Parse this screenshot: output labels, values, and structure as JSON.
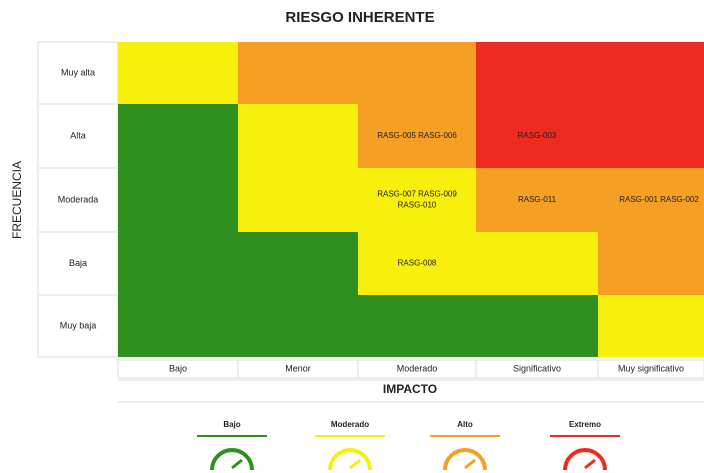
{
  "title": "RIESGO INHERENTE",
  "y_axis_label": "FRECUENCIA",
  "x_axis_label": "IMPACTO",
  "columns": [
    "Bajo",
    "Menor",
    "Moderado",
    "Significativo",
    "Muy significativo"
  ],
  "legend": [
    {
      "label": "Bajo",
      "color": "#2f8f1f"
    },
    {
      "label": "Moderado",
      "color": "#f6f00c"
    },
    {
      "label": "Alto",
      "color": "#f5a024"
    },
    {
      "label": "Extremo",
      "color": "#ee2b20"
    }
  ],
  "rows": [
    {
      "label": "Muy alta",
      "cells": [
        {
          "level": 1
        },
        {
          "level": 2
        },
        {
          "level": 2
        },
        {
          "level": 3
        },
        {
          "level": 3
        }
      ]
    },
    {
      "label": "Alta",
      "cells": [
        {
          "level": 0
        },
        {
          "level": 1
        },
        {
          "level": 2,
          "labels": [
            "RASG-005 RASG-006"
          ]
        },
        {
          "level": 3,
          "labels": [
            "RASG-003"
          ]
        },
        {
          "level": 3
        }
      ]
    },
    {
      "label": "Moderada",
      "cells": [
        {
          "level": 0
        },
        {
          "level": 1
        },
        {
          "level": 1,
          "labels": [
            "RASG-007 RASG-009",
            "RASG-010"
          ]
        },
        {
          "level": 2,
          "labels": [
            "RASG-011"
          ]
        },
        {
          "level": 2,
          "labels": [
            "RASG-001 RASG-002"
          ]
        }
      ]
    },
    {
      "label": "Baja",
      "cells": [
        {
          "level": 0
        },
        {
          "level": 0
        },
        {
          "level": 1,
          "labels": [
            "RASG-008"
          ]
        },
        {
          "level": 1
        },
        {
          "level": 2
        }
      ]
    },
    {
      "label": "Muy baja",
      "cells": [
        {
          "level": 0
        },
        {
          "level": 0
        },
        {
          "level": 0
        },
        {
          "level": 0
        },
        {
          "level": 1
        }
      ]
    }
  ]
}
